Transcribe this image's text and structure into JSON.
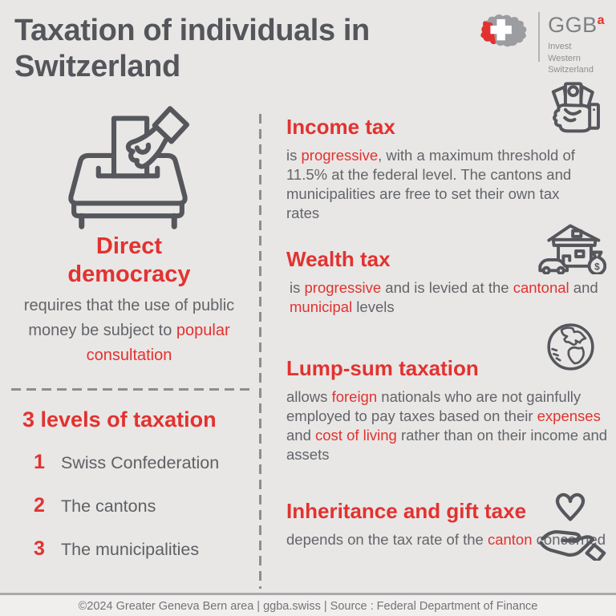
{
  "colors": {
    "background": "#e8e7e5",
    "accent_red": "#e23230",
    "title_gray": "#54565b",
    "body_gray": "#63656a",
    "icon_gray": "#55575c"
  },
  "header": {
    "title_lines": [
      "Taxation of individuals in",
      "Switzerland"
    ],
    "logo": {
      "map_icon": "switzerland-map-icon",
      "brand": "GGB",
      "sup": "a",
      "tagline": [
        "Invest",
        "Western",
        "Switzerland"
      ]
    }
  },
  "left": {
    "democracy": {
      "icon": "ballot-box-icon",
      "heading": "Direct democracy",
      "body": [
        {
          "t": "requires that the use of public money be subject to "
        },
        {
          "t": "popular consultation",
          "red": true
        }
      ]
    },
    "levels": {
      "heading": "3 levels of taxation",
      "items": [
        {
          "num": "1",
          "label": "Swiss Confederation"
        },
        {
          "num": "2",
          "label": "The cantons"
        },
        {
          "num": "3",
          "label": "The municipalities"
        }
      ]
    }
  },
  "right": {
    "sections": [
      {
        "heading": "Income tax",
        "icon": "money-in-hand-icon",
        "body": [
          {
            "t": "is "
          },
          {
            "t": "progressive",
            "red": true
          },
          {
            "t": ", with a maximum threshold of 11.5% at the federal level. The cantons and municipalities are free to set their own tax rates"
          }
        ]
      },
      {
        "heading": "Wealth tax",
        "icon": "house-car-money-icon",
        "body": [
          {
            "t": "is "
          },
          {
            "t": "progressive",
            "red": true
          },
          {
            "t": " and is levied at the "
          },
          {
            "t": "cantonal",
            "red": true
          },
          {
            "t": " and "
          },
          {
            "t": "municipal",
            "red": true
          },
          {
            "t": " levels"
          }
        ]
      },
      {
        "heading": "Lump-sum taxation",
        "icon": "globe-icon",
        "body": [
          {
            "t": "allows "
          },
          {
            "t": "foreign",
            "red": true
          },
          {
            "t": " nationals who are not gainfully employed to pay taxes based on their "
          },
          {
            "t": "expenses",
            "red": true
          },
          {
            "t": " and "
          },
          {
            "t": "cost of living",
            "red": true
          },
          {
            "t": " rather than on their income and assets"
          }
        ]
      },
      {
        "heading": "Inheritance and gift taxe",
        "icon": "hand-heart-icon",
        "body": [
          {
            "t": "depends on the tax rate of the "
          },
          {
            "t": "canton",
            "red": true
          },
          {
            "t": " concerned"
          }
        ]
      }
    ]
  },
  "footer": {
    "text": "©2024 Greater Geneva Bern area | ggba.swiss | Source : Federal Department of Finance"
  }
}
